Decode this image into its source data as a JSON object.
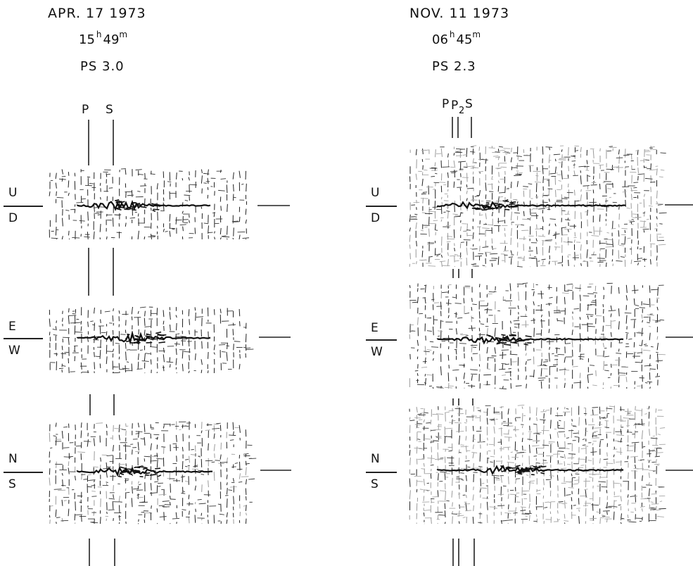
{
  "left_event": {
    "date": "APR. 17  1973",
    "hour": "15",
    "hour_sup": "h",
    "minute": "49",
    "minute_sup": "m",
    "ps": "PS 3.0",
    "phase_labels": [
      "P",
      "S"
    ]
  },
  "right_event": {
    "date": "NOV. 11  1973",
    "hour": "06",
    "hour_sup": "h",
    "minute": "45",
    "minute_sup": "m",
    "ps": "PS  2.3",
    "phase_labels": [
      "P",
      "P",
      "2",
      "S"
    ]
  },
  "components": [
    {
      "top": "U",
      "bottom": "D"
    },
    {
      "top": "E",
      "bottom": "W"
    },
    {
      "top": "N",
      "bottom": "S"
    }
  ]
}
